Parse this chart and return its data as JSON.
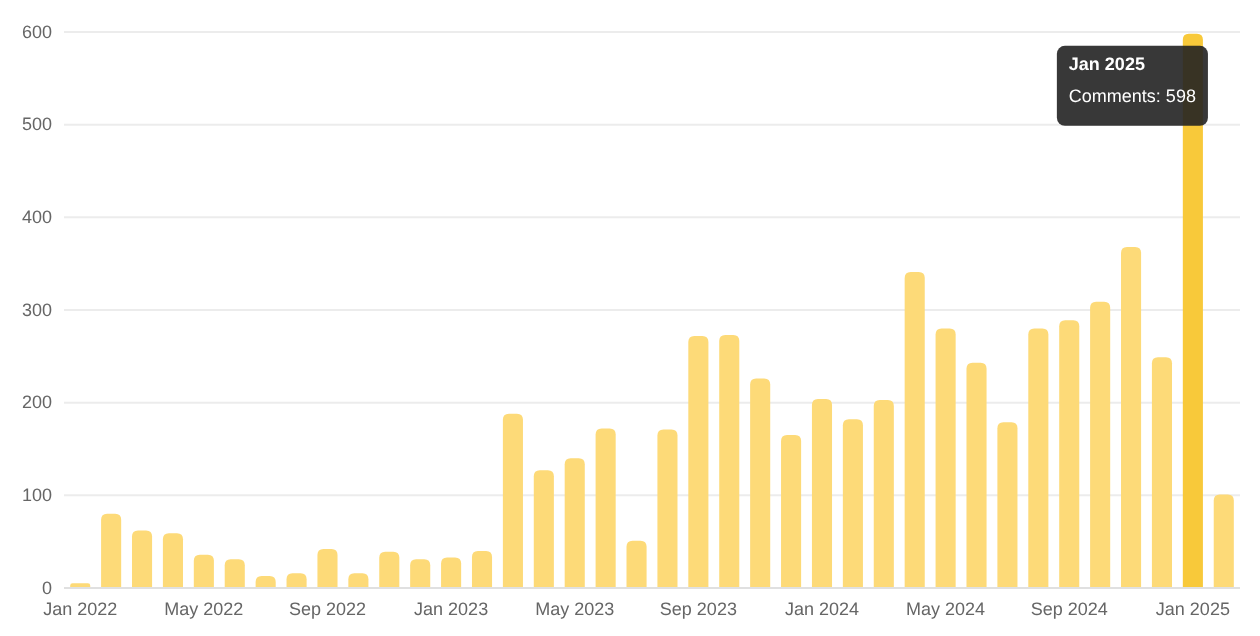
{
  "chart_data": {
    "type": "bar",
    "categories": [
      "Jan 2022",
      null,
      null,
      null,
      "May 2022",
      null,
      null,
      null,
      "Sep 2022",
      null,
      null,
      null,
      "Jan 2023",
      null,
      null,
      null,
      "May 2023",
      null,
      null,
      null,
      "Sep 2023",
      null,
      null,
      null,
      "Jan 2024",
      null,
      null,
      null,
      "May 2024",
      null,
      null,
      null,
      "Sep 2024",
      null,
      null,
      null,
      "Jan 2025",
      null
    ],
    "values": [
      5,
      80,
      62,
      59,
      36,
      31,
      13,
      16,
      42,
      16,
      39,
      31,
      33,
      40,
      188,
      127,
      140,
      172,
      51,
      171,
      272,
      273,
      226,
      165,
      204,
      182,
      203,
      341,
      280,
      243,
      179,
      280,
      289,
      309,
      368,
      249,
      598,
      101
    ],
    "colors": [
      "#fdda78",
      "#fdda78",
      "#fdda78",
      "#fdda78",
      "#fdda78",
      "#fdda78",
      "#fdda78",
      "#fdda78",
      "#fdda78",
      "#fdda78",
      "#fdda78",
      "#fdda78",
      "#fdda78",
      "#fdda78",
      "#fdda78",
      "#fdda78",
      "#fdda78",
      "#fdda78",
      "#fdda78",
      "#fdda78",
      "#fdda78",
      "#fdda78",
      "#fdda78",
      "#fdda78",
      "#fdda78",
      "#fdda78",
      "#fdda78",
      "#fdda78",
      "#fdda78",
      "#fdda78",
      "#fdda78",
      "#fdda78",
      "#fdda78",
      "#fdda78",
      "#fdda78",
      "#fdda78",
      "#f8c93a",
      "#fdda78"
    ],
    "ylim": [
      0,
      600
    ],
    "yticks": [
      0,
      100,
      200,
      300,
      400,
      500,
      600
    ],
    "grid": "y",
    "annotations": [
      {
        "text": "Jan 2025",
        "x": "Jan 2025",
        "y": 598
      },
      {
        "text": "Comments: 598",
        "x": "Jan 2025",
        "y": 598
      }
    ]
  }
}
